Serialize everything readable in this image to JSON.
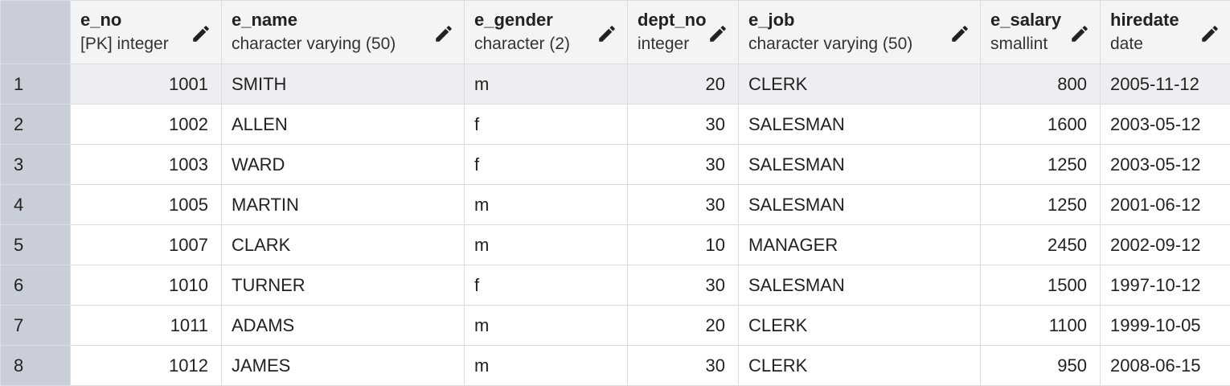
{
  "table": {
    "columns": [
      {
        "name": "e_no",
        "type": "[PK] integer"
      },
      {
        "name": "e_name",
        "type": "character varying (50)"
      },
      {
        "name": "e_gender",
        "type": "character (2)"
      },
      {
        "name": "dept_no",
        "type": "integer"
      },
      {
        "name": "e_job",
        "type": "character varying (50)"
      },
      {
        "name": "e_salary",
        "type": "smallint"
      },
      {
        "name": "hiredate",
        "type": "date"
      }
    ],
    "row_numbers": [
      1,
      2,
      3,
      4,
      5,
      6,
      7,
      8
    ],
    "rows": [
      [
        1001,
        "SMITH",
        "m",
        20,
        "CLERK",
        800,
        "2005-11-12"
      ],
      [
        1002,
        "ALLEN",
        "f",
        30,
        "SALESMAN",
        1600,
        "2003-05-12"
      ],
      [
        1003,
        "WARD",
        "f",
        30,
        "SALESMAN",
        1250,
        "2003-05-12"
      ],
      [
        1005,
        "MARTIN",
        "m",
        30,
        "SALESMAN",
        1250,
        "2001-06-12"
      ],
      [
        1007,
        "CLARK",
        "m",
        10,
        "MANAGER",
        2450,
        "2002-09-12"
      ],
      [
        1010,
        "TURNER",
        "f",
        30,
        "SALESMAN",
        1500,
        "1997-10-12"
      ],
      [
        1011,
        "ADAMS",
        "m",
        20,
        "CLERK",
        1100,
        "1999-10-05"
      ],
      [
        1012,
        "JAMES",
        "m",
        30,
        "CLERK",
        950,
        "2008-06-15"
      ]
    ]
  }
}
